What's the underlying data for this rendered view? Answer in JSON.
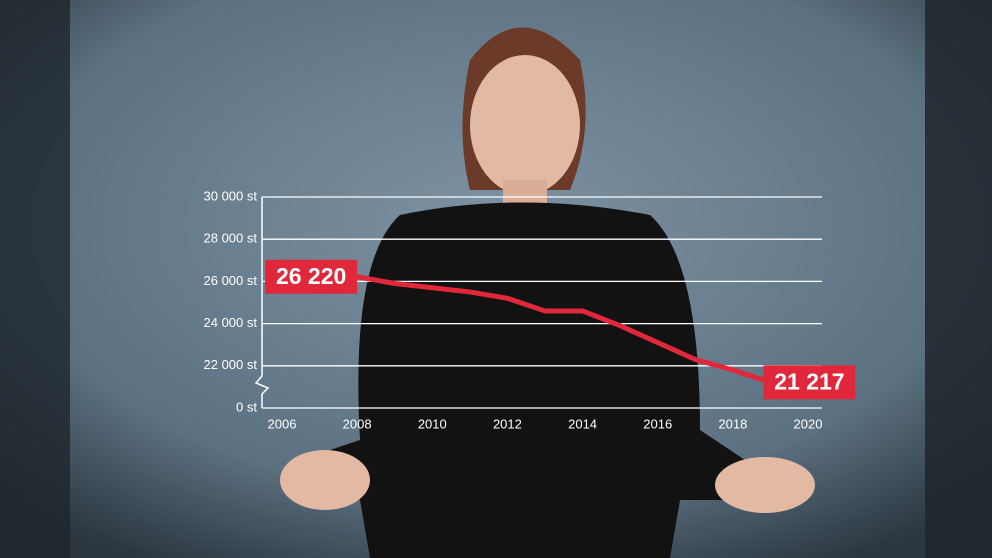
{
  "chart_data": {
    "type": "line",
    "x": [
      2008,
      2009,
      2010,
      2011,
      2012,
      2013,
      2014,
      2015,
      2016,
      2017,
      2018,
      2019
    ],
    "series": [
      {
        "color": "#e0283a",
        "values": [
          26220,
          25900,
          25700,
          25500,
          25200,
          24600,
          24600,
          23900,
          23100,
          22300,
          21800,
          21217
        ],
        "value_labels": [
          "26 220",
          null,
          null,
          null,
          null,
          null,
          null,
          null,
          null,
          null,
          null,
          "21 217"
        ]
      }
    ],
    "xlim": [
      2006,
      2020
    ],
    "xticks": [
      2006,
      2008,
      2010,
      2012,
      2014,
      2016,
      2018,
      2020
    ],
    "ylim": [
      20000,
      30000
    ],
    "yticks": [
      {
        "value": 0,
        "label": "0 st"
      },
      {
        "value": 22000,
        "label": "22 000 st"
      },
      {
        "value": 24000,
        "label": "24 000 st"
      },
      {
        "value": 26000,
        "label": "26 000 st"
      },
      {
        "value": 28000,
        "label": "28 000 st"
      },
      {
        "value": 30000,
        "label": "30 000 st"
      }
    ],
    "grid": true,
    "axis_break": true
  }
}
